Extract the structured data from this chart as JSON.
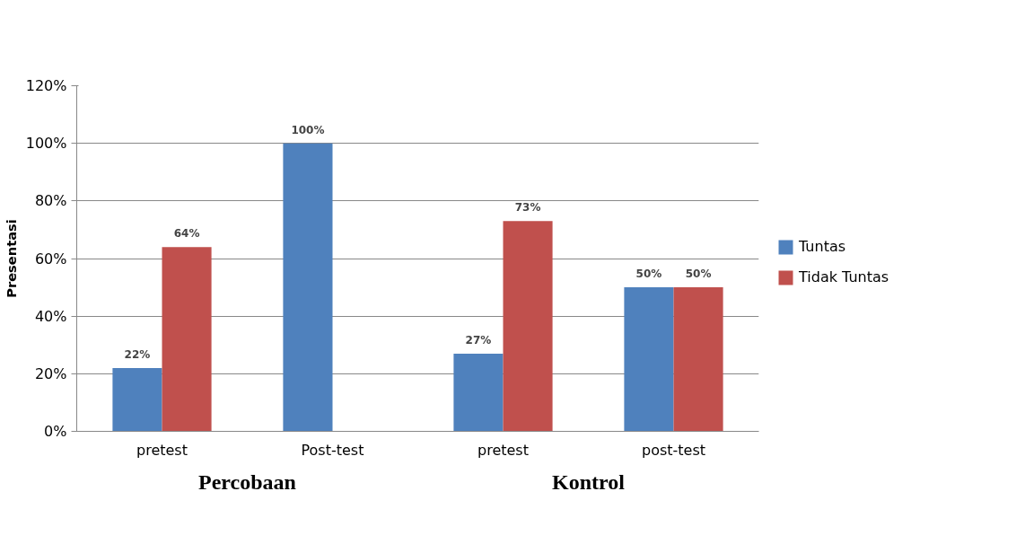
{
  "chart_data": {
    "type": "bar",
    "ylabel": "Presentasi",
    "categories": [
      "pretest",
      "Post-test",
      "pretest",
      "post-test"
    ],
    "series": [
      {
        "name": "Tuntas",
        "color": "#4f81bd",
        "values": [
          22,
          100,
          27,
          50
        ],
        "value_labels": [
          "22%",
          "100%",
          "27%",
          "50%"
        ]
      },
      {
        "name": "Tidak Tuntas",
        "color": "#c0504d",
        "values": [
          64,
          0,
          73,
          50
        ],
        "value_labels": [
          "64%",
          null,
          "73%",
          "50%"
        ]
      }
    ],
    "ylim": [
      0,
      120
    ],
    "yticks": [
      {
        "value": 0,
        "label": "0%"
      },
      {
        "value": 20,
        "label": "20%"
      },
      {
        "value": 40,
        "label": "40%"
      },
      {
        "value": 60,
        "label": "60%"
      },
      {
        "value": 80,
        "label": "80%"
      },
      {
        "value": 100,
        "label": "100%"
      },
      {
        "value": 120,
        "label": "120%"
      }
    ],
    "annotations": [
      "Percobaan",
      "Kontrol"
    ],
    "grid": "y",
    "legend": "right"
  }
}
